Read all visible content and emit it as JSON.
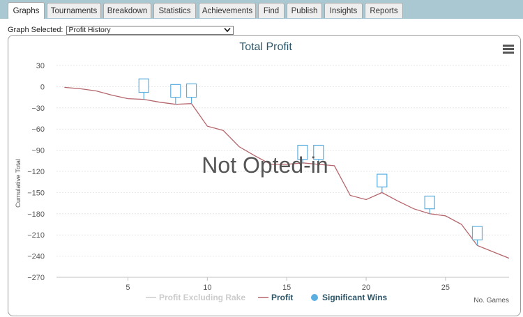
{
  "tabs": [
    {
      "label": "Graphs",
      "active": true
    },
    {
      "label": "Tournaments"
    },
    {
      "label": "Breakdown"
    },
    {
      "label": "Statistics"
    },
    {
      "label": "Achievements"
    },
    {
      "label": "Find"
    },
    {
      "label": "Publish"
    },
    {
      "label": "Insights"
    },
    {
      "label": "Reports"
    }
  ],
  "graph_selector": {
    "label": "Graph Selected:",
    "value": "Profit History"
  },
  "overlay_text": "Not Opted-in",
  "colors": {
    "tabbar_bg": "#a9c8d2",
    "profit_line": "#b5656b",
    "significant_wins": "#5aaee0",
    "excluding_rake": "#cccccc",
    "title": "#2c5567"
  },
  "chart_data": {
    "type": "line",
    "title": "Total Profit",
    "xlabel": "No. Games",
    "ylabel": "Cumulative Total",
    "xlim": [
      0.5,
      29
    ],
    "ylim": [
      -270,
      30
    ],
    "x_ticks": [
      5,
      10,
      15,
      20,
      25
    ],
    "y_ticks": [
      30,
      0,
      -30,
      -60,
      -90,
      -120,
      -150,
      -180,
      -210,
      -240,
      -270
    ],
    "series": [
      {
        "name": "Profit Excluding Rake",
        "visible": false,
        "values": []
      },
      {
        "name": "Profit",
        "x": [
          1,
          2,
          3,
          4,
          5,
          6,
          7,
          8,
          9,
          10,
          11,
          12,
          13,
          14,
          15,
          16,
          17,
          18,
          19,
          20,
          21,
          22,
          23,
          24,
          25,
          26,
          27,
          28,
          29
        ],
        "values": [
          -1,
          -3,
          -6,
          -12,
          -17,
          -18,
          -22,
          -25,
          -24,
          -56,
          -62,
          -85,
          -98,
          -110,
          -110,
          -108,
          -110,
          -112,
          -154,
          -160,
          -150,
          -162,
          -173,
          -180,
          -183,
          -195,
          -225,
          -234,
          -243
        ]
      },
      {
        "name": "Significant Wins",
        "type": "candlestick",
        "points": [
          {
            "x": 6,
            "open": -18,
            "close": -8,
            "high": 11,
            "low": -18
          },
          {
            "x": 8,
            "open": -25,
            "close": -15,
            "high": 3,
            "low": -25
          },
          {
            "x": 9,
            "open": -24,
            "close": -15,
            "high": 4,
            "low": -24
          },
          {
            "x": 16,
            "open": -108,
            "close": -103,
            "high": -83,
            "low": -108
          },
          {
            "x": 17,
            "open": -110,
            "close": -103,
            "high": -83,
            "low": -110
          },
          {
            "x": 21,
            "open": -150,
            "close": -142,
            "high": -124,
            "low": -150
          },
          {
            "x": 24,
            "open": -180,
            "close": -173,
            "high": -155,
            "low": -180
          },
          {
            "x": 27,
            "open": -225,
            "close": -217,
            "high": -198,
            "low": -225
          }
        ]
      }
    ],
    "legend": [
      "Profit Excluding Rake",
      "Profit",
      "Significant Wins"
    ],
    "legend_position": "bottom",
    "grid": true
  }
}
